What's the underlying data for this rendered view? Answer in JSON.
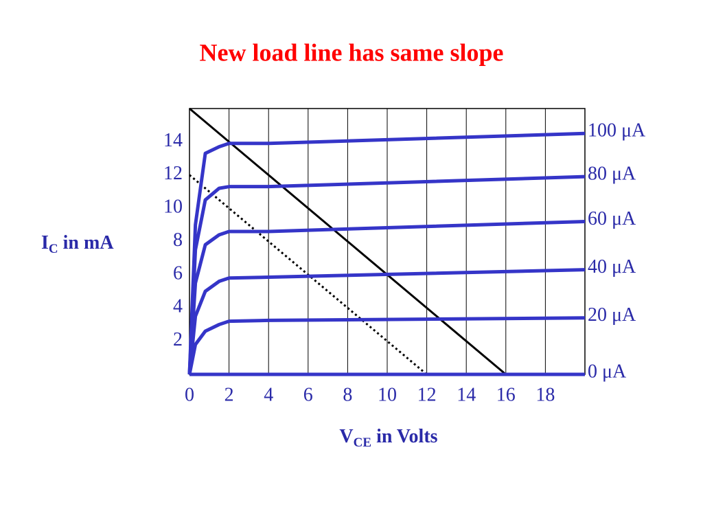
{
  "chart_data": {
    "type": "line",
    "title": "New load line has same slope",
    "ylabel": [
      "I",
      "C",
      " in mA"
    ],
    "xlabel": [
      "V",
      "CE",
      " in Volts"
    ],
    "x": [
      0,
      0.3,
      0.8,
      1.5,
      2,
      4,
      20
    ],
    "series": [
      {
        "name": "100 μA",
        "color": "#3535c8",
        "values": [
          0,
          9,
          13.3,
          13.7,
          13.9,
          13.9,
          14.5
        ]
      },
      {
        "name": "80 μA",
        "color": "#3535c8",
        "values": [
          0,
          7.5,
          10.5,
          11.2,
          11.3,
          11.3,
          11.9
        ]
      },
      {
        "name": "60 μA",
        "color": "#3535c8",
        "values": [
          0,
          5.5,
          7.8,
          8.4,
          8.6,
          8.6,
          9.2
        ]
      },
      {
        "name": "40 μA",
        "color": "#3535c8",
        "values": [
          0,
          3.5,
          5.0,
          5.6,
          5.8,
          5.85,
          6.3
        ]
      },
      {
        "name": "20 μA",
        "color": "#3535c8",
        "values": [
          0,
          1.8,
          2.6,
          3.0,
          3.2,
          3.25,
          3.4
        ]
      },
      {
        "name": "0 μA",
        "color": "#3535c8",
        "values": [
          0,
          0,
          0,
          0,
          0,
          0,
          0
        ]
      }
    ],
    "load_lines": [
      {
        "x": [
          0,
          16
        ],
        "values": [
          16,
          0
        ],
        "color": "#000000",
        "dashed": false
      },
      {
        "x": [
          0,
          12
        ],
        "values": [
          12,
          0
        ],
        "color": "#000000",
        "dashed": true
      }
    ],
    "xlim": [
      0,
      20
    ],
    "ylim": [
      0,
      16
    ],
    "xticks": [
      0,
      2,
      4,
      6,
      8,
      10,
      12,
      14,
      16,
      18
    ],
    "yticks": [
      2,
      4,
      6,
      8,
      10,
      12,
      14
    ],
    "grid": true
  }
}
